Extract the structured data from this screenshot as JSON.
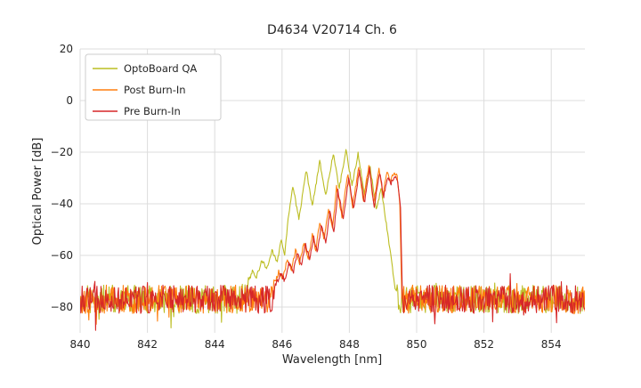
{
  "page": {
    "background": "#ffffff"
  },
  "chart_data": {
    "type": "line",
    "title": "D4634 V20714 Ch. 6",
    "xlabel": "Wavelength [nm]",
    "ylabel": "Optical Power [dB]",
    "xlim": [
      840,
      855
    ],
    "ylim": [
      -90,
      20
    ],
    "xticks": [
      840,
      842,
      844,
      846,
      848,
      850,
      852,
      854
    ],
    "yticks": [
      20,
      0,
      -20,
      -40,
      -60,
      -80
    ],
    "ytick_labels": [
      "20",
      "0",
      "−20",
      "−40",
      "−60",
      "−80"
    ],
    "grid": true,
    "legend_position": "upper left",
    "noise": {
      "floor": -77,
      "amplitude": 5.5,
      "spike_down": 9,
      "spike_up": 5,
      "step": 0.02
    },
    "series": [
      {
        "name": "OptoBoard QA",
        "color": "#bcbd22",
        "seed": 11,
        "envelope": [
          [
            840,
            -110
          ],
          [
            844.7,
            -110
          ],
          [
            845.0,
            -71
          ],
          [
            845.12,
            -66
          ],
          [
            845.25,
            -69
          ],
          [
            845.4,
            -62
          ],
          [
            845.55,
            -66
          ],
          [
            845.7,
            -58
          ],
          [
            845.85,
            -63
          ],
          [
            845.98,
            -54
          ],
          [
            846.08,
            -60
          ],
          [
            846.18,
            -46
          ],
          [
            846.32,
            -33
          ],
          [
            846.5,
            -46
          ],
          [
            846.72,
            -27
          ],
          [
            846.9,
            -41
          ],
          [
            847.12,
            -23.5
          ],
          [
            847.3,
            -37
          ],
          [
            847.52,
            -20.5
          ],
          [
            847.7,
            -34
          ],
          [
            847.9,
            -19
          ],
          [
            848.08,
            -33
          ],
          [
            848.26,
            -20.5
          ],
          [
            848.44,
            -36
          ],
          [
            848.62,
            -26
          ],
          [
            848.8,
            -42
          ],
          [
            848.95,
            -34
          ],
          [
            849.1,
            -48
          ],
          [
            849.25,
            -62
          ],
          [
            849.4,
            -78
          ],
          [
            849.5,
            -110
          ],
          [
            855,
            -110
          ]
        ]
      },
      {
        "name": "Post Burn-In",
        "color": "#ff7f0e",
        "seed": 22,
        "envelope": [
          [
            840,
            -110
          ],
          [
            845.55,
            -110
          ],
          [
            845.75,
            -72
          ],
          [
            845.9,
            -67
          ],
          [
            846.02,
            -70
          ],
          [
            846.15,
            -62
          ],
          [
            846.28,
            -66
          ],
          [
            846.4,
            -58
          ],
          [
            846.52,
            -63
          ],
          [
            846.65,
            -55
          ],
          [
            846.78,
            -61
          ],
          [
            846.9,
            -52
          ],
          [
            847.0,
            -58
          ],
          [
            847.12,
            -47
          ],
          [
            847.25,
            -54
          ],
          [
            847.38,
            -42
          ],
          [
            847.5,
            -50
          ],
          [
            847.62,
            -33.5
          ],
          [
            847.78,
            -45
          ],
          [
            847.95,
            -28
          ],
          [
            848.1,
            -41
          ],
          [
            848.28,
            -25.5
          ],
          [
            848.42,
            -39
          ],
          [
            848.58,
            -24.8
          ],
          [
            848.72,
            -40
          ],
          [
            848.88,
            -26.5
          ],
          [
            849.0,
            -36
          ],
          [
            849.12,
            -28
          ],
          [
            849.22,
            -31
          ],
          [
            849.32,
            -27.8
          ],
          [
            849.42,
            -29
          ],
          [
            849.5,
            -40
          ],
          [
            849.56,
            -78
          ],
          [
            849.62,
            -110
          ],
          [
            855,
            -110
          ]
        ]
      },
      {
        "name": "Pre Burn-In",
        "color": "#d62728",
        "seed": 33,
        "envelope": [
          [
            840,
            -110
          ],
          [
            845.6,
            -110
          ],
          [
            845.8,
            -72
          ],
          [
            845.95,
            -68
          ],
          [
            846.07,
            -71
          ],
          [
            846.2,
            -63
          ],
          [
            846.33,
            -67
          ],
          [
            846.45,
            -59
          ],
          [
            846.57,
            -64
          ],
          [
            846.7,
            -56
          ],
          [
            846.82,
            -62
          ],
          [
            846.94,
            -53
          ],
          [
            847.05,
            -59
          ],
          [
            847.17,
            -48
          ],
          [
            847.3,
            -55
          ],
          [
            847.42,
            -43
          ],
          [
            847.54,
            -51
          ],
          [
            847.66,
            -35
          ],
          [
            847.82,
            -46
          ],
          [
            847.98,
            -30
          ],
          [
            848.13,
            -42
          ],
          [
            848.3,
            -27
          ],
          [
            848.45,
            -40
          ],
          [
            848.6,
            -26.5
          ],
          [
            848.74,
            -41
          ],
          [
            848.9,
            -28
          ],
          [
            849.02,
            -37
          ],
          [
            849.14,
            -29.5
          ],
          [
            849.24,
            -32
          ],
          [
            849.34,
            -29.5
          ],
          [
            849.44,
            -31
          ],
          [
            849.52,
            -42
          ],
          [
            849.58,
            -78
          ],
          [
            849.64,
            -110
          ],
          [
            855,
            -110
          ]
        ]
      }
    ]
  }
}
